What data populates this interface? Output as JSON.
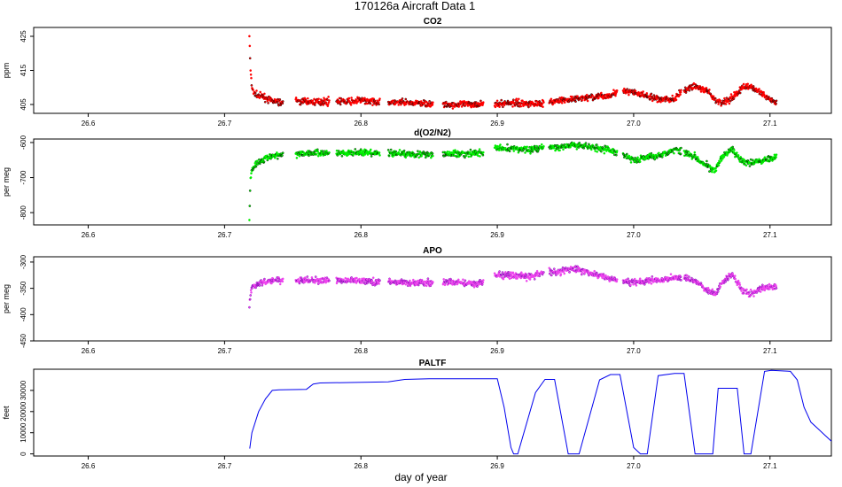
{
  "figure": {
    "title": "170126a   Aircraft Data 1",
    "xlabel": "day of year"
  },
  "chart_data": [
    {
      "type": "scatter",
      "title": "CO2",
      "ylabel": "ppm",
      "xlabel": "",
      "xlim": [
        26.56,
        27.145
      ],
      "ylim": [
        402.4,
        427.6
      ],
      "xticks": [
        "26.6",
        "26.7",
        "26.8",
        "26.9",
        "27.0",
        "27.1"
      ],
      "yticks": [
        405,
        415,
        425
      ],
      "grid": false,
      "colors": {
        "fill": "#ff0000",
        "stroke": "#000000"
      },
      "series": [
        {
          "x": [
            26.7182,
            26.719,
            26.72,
            26.722,
            26.725,
            26.73,
            26.735,
            26.742,
            26.75,
            26.765,
            26.78,
            26.79,
            26.8,
            26.812,
            26.82,
            26.835,
            26.85,
            26.86,
            26.875,
            26.89,
            26.898,
            26.91,
            26.925,
            26.935,
            26.945,
            26.955,
            26.965,
            26.98,
            26.99,
            27.0,
            27.013,
            27.02,
            27.03,
            27.036,
            27.045,
            27.055,
            27.06,
            27.065,
            27.072,
            27.08,
            27.085,
            27.095,
            27.105
          ],
          "y": [
            425.5,
            415,
            410,
            408,
            407.5,
            407,
            406,
            405.5,
            406,
            405.8,
            406,
            405.8,
            406.2,
            405.8,
            405.5,
            405.5,
            405.3,
            404.8,
            405,
            405.2,
            405,
            405.5,
            405.3,
            405.5,
            406,
            406.5,
            407,
            407.5,
            409,
            408.5,
            407,
            406.5,
            406.5,
            409,
            410.5,
            408.5,
            406,
            405.5,
            407,
            410,
            410.5,
            408,
            405
          ]
        }
      ]
    },
    {
      "type": "scatter",
      "title": "d(O2/N2)",
      "ylabel": "per meg",
      "xlabel": "",
      "xlim": [
        26.56,
        27.145
      ],
      "ylim": [
        -835,
        -590
      ],
      "xticks": [
        "26.6",
        "26.7",
        "26.8",
        "26.9",
        "27.0",
        "27.1"
      ],
      "yticks": [
        -800,
        -700,
        -600
      ],
      "grid": false,
      "colors": {
        "fill": "#00ee00",
        "stroke": "#000000"
      },
      "series": [
        {
          "x": [
            26.7182,
            26.719,
            26.72,
            26.722,
            26.725,
            26.73,
            26.735,
            26.742,
            26.75,
            26.765,
            26.78,
            26.79,
            26.8,
            26.812,
            26.82,
            26.835,
            26.85,
            26.86,
            26.875,
            26.89,
            26.898,
            26.91,
            26.925,
            26.935,
            26.945,
            26.955,
            26.965,
            26.98,
            26.99,
            27.0,
            27.013,
            27.02,
            27.03,
            27.036,
            27.045,
            27.055,
            27.06,
            27.065,
            27.072,
            27.08,
            27.085,
            27.095,
            27.105
          ],
          "y": [
            -820,
            -700,
            -680,
            -665,
            -655,
            -645,
            -640,
            -635,
            -632,
            -630,
            -630,
            -630,
            -628,
            -632,
            -630,
            -632,
            -635,
            -632,
            -632,
            -630,
            -615,
            -618,
            -620,
            -612,
            -615,
            -608,
            -610,
            -620,
            -630,
            -650,
            -640,
            -635,
            -620,
            -625,
            -640,
            -670,
            -680,
            -640,
            -620,
            -655,
            -660,
            -650,
            -640
          ]
        }
      ]
    },
    {
      "type": "scatter",
      "title": "APO",
      "ylabel": "per meg",
      "xlabel": "",
      "xlim": [
        26.56,
        27.145
      ],
      "ylim": [
        -450,
        -290
      ],
      "xticks": [
        "26.6",
        "26.7",
        "26.8",
        "26.9",
        "27.0",
        "27.1"
      ],
      "yticks": [
        -450,
        -400,
        -350,
        -300
      ],
      "grid": false,
      "colors": {
        "fill": "#ee44ee",
        "stroke": "#6600aa"
      },
      "series": [
        {
          "x": [
            26.7182,
            26.719,
            26.72,
            26.722,
            26.725,
            26.73,
            26.735,
            26.742,
            26.75,
            26.765,
            26.78,
            26.79,
            26.8,
            26.812,
            26.82,
            26.835,
            26.85,
            26.86,
            26.875,
            26.89,
            26.898,
            26.91,
            26.925,
            26.935,
            26.945,
            26.955,
            26.965,
            26.98,
            26.99,
            27.0,
            27.013,
            27.02,
            27.03,
            27.036,
            27.045,
            27.055,
            27.06,
            27.065,
            27.072,
            27.08,
            27.085,
            27.095,
            27.105
          ],
          "y": [
            -385,
            -360,
            -350,
            -345,
            -340,
            -338,
            -335,
            -335,
            -335,
            -335,
            -335,
            -335,
            -335,
            -338,
            -338,
            -340,
            -340,
            -338,
            -340,
            -340,
            -325,
            -325,
            -328,
            -318,
            -320,
            -312,
            -318,
            -330,
            -335,
            -338,
            -335,
            -335,
            -330,
            -330,
            -335,
            -355,
            -360,
            -340,
            -322,
            -355,
            -360,
            -350,
            -345
          ]
        }
      ]
    },
    {
      "type": "line",
      "title": "PALTF",
      "ylabel": "feet",
      "xlabel": "day of year",
      "xlim": [
        26.56,
        27.145
      ],
      "ylim": [
        -1000,
        40000
      ],
      "xticks": [
        "26.6",
        "26.7",
        "26.8",
        "26.9",
        "27.0",
        "27.1"
      ],
      "yticks": [
        0,
        10000,
        20000,
        30000
      ],
      "grid": false,
      "colors": {
        "line": "#0000ee"
      },
      "series": [
        {
          "x": [
            26.7185,
            26.72,
            26.725,
            26.73,
            26.735,
            26.74,
            26.76,
            26.765,
            26.77,
            26.82,
            26.832,
            26.85,
            26.9,
            26.905,
            26.91,
            26.912,
            26.915,
            26.928,
            26.935,
            26.942,
            26.952,
            26.957,
            26.96,
            26.975,
            26.983,
            26.99,
            27.0,
            27.005,
            27.01,
            27.018,
            27.03,
            27.037,
            27.045,
            27.052,
            27.058,
            27.062,
            27.067,
            27.076,
            27.081,
            27.086,
            27.096,
            27.101,
            27.115,
            27.12,
            27.125,
            27.13,
            27.135,
            27.14,
            27.145
          ],
          "y": [
            2500,
            10000,
            20000,
            26000,
            30000,
            30300,
            30500,
            33000,
            33500,
            34000,
            35200,
            35500,
            35500,
            22000,
            3000,
            0,
            0,
            29000,
            35200,
            35200,
            0,
            0,
            0,
            35000,
            37500,
            37500,
            3000,
            0,
            0,
            37000,
            38000,
            38000,
            0,
            0,
            0,
            31000,
            31000,
            31000,
            0,
            0,
            39000,
            39500,
            39000,
            35000,
            22000,
            15000,
            12000,
            9000,
            6000
          ]
        }
      ]
    }
  ]
}
